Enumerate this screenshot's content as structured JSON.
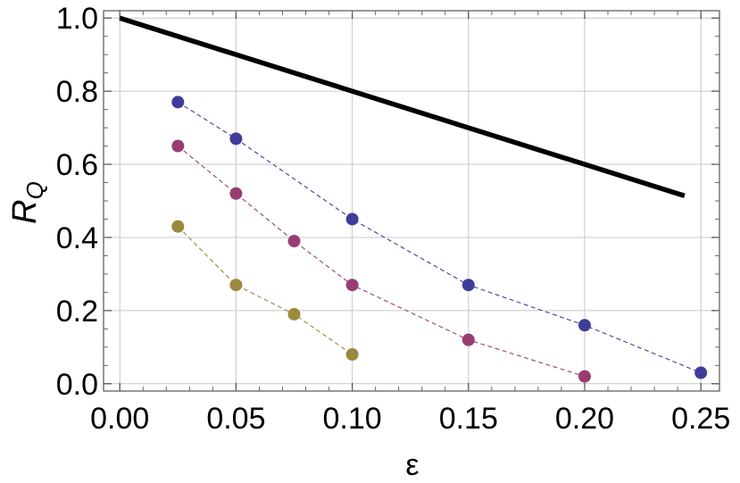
{
  "chart_data": {
    "type": "line",
    "xlabel": "ε",
    "ylabel": "R",
    "ylabel_subscript": "Q",
    "xlim": [
      -0.007,
      0.258
    ],
    "ylim": [
      -0.02,
      1.02
    ],
    "x_ticks": [
      0.0,
      0.05,
      0.1,
      0.15,
      0.2,
      0.25
    ],
    "x_tick_labels": [
      "0.00",
      "0.05",
      "0.10",
      "0.15",
      "0.20",
      "0.25"
    ],
    "y_ticks": [
      0.0,
      0.2,
      0.4,
      0.6,
      0.8,
      1.0
    ],
    "y_tick_labels": [
      "0.0",
      "0.2",
      "0.4",
      "0.6",
      "0.8",
      "1.0"
    ],
    "grid": true,
    "series": [
      {
        "style": "solid-line",
        "color": "#000000",
        "x": [
          0.0,
          0.243
        ],
        "y": [
          1.0,
          0.514
        ]
      },
      {
        "style": "dashed-markers",
        "color": "#3f3d99",
        "x": [
          0.025,
          0.05,
          0.1,
          0.15,
          0.2,
          0.25
        ],
        "y": [
          0.77,
          0.67,
          0.45,
          0.27,
          0.16,
          0.03
        ]
      },
      {
        "style": "dashed-markers",
        "color": "#993d71",
        "x": [
          0.025,
          0.05,
          0.075,
          0.1,
          0.15,
          0.2
        ],
        "y": [
          0.65,
          0.52,
          0.39,
          0.27,
          0.12,
          0.02
        ]
      },
      {
        "style": "dashed-markers",
        "color": "#998a3d",
        "x": [
          0.025,
          0.05,
          0.075,
          0.1
        ],
        "y": [
          0.43,
          0.27,
          0.19,
          0.08
        ]
      }
    ]
  }
}
